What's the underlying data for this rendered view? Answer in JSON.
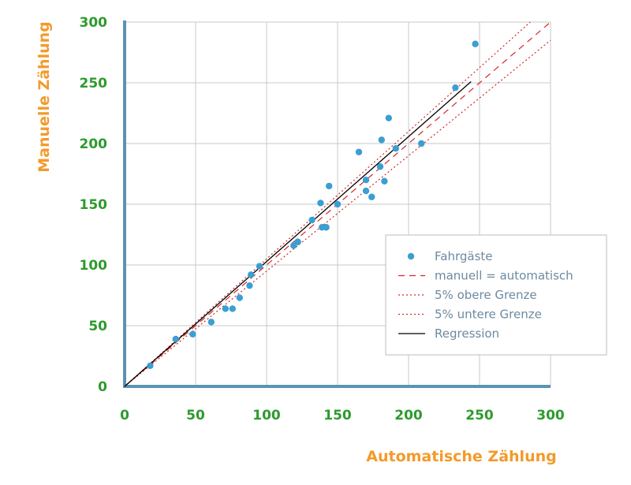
{
  "chart_data": {
    "type": "scatter",
    "xlabel": "Automatische Zählung",
    "ylabel": "Manuelle Zählung",
    "xlim": [
      0,
      300
    ],
    "ylim": [
      0,
      300
    ],
    "x_ticks": [
      0,
      50,
      100,
      150,
      200,
      250,
      300
    ],
    "y_ticks": [
      0,
      50,
      100,
      150,
      200,
      250,
      300
    ],
    "grid": true,
    "legend_position": "right",
    "colors": {
      "tick_labels": "#2e9a2e",
      "axis_titles": "#f39a2a",
      "axis_lines": "#5b93b3",
      "points": "#3a9fd2",
      "identity_line": "#d62728",
      "bound_lines": "#d62728",
      "regression_line": "#000000",
      "legend_text": "#6c8aa0",
      "grid": "#c8c8c8"
    },
    "series": [
      {
        "name": "Fahrgäste",
        "kind": "scatter",
        "points": [
          [
            18,
            17
          ],
          [
            36,
            39
          ],
          [
            48,
            43
          ],
          [
            61,
            53
          ],
          [
            71,
            64
          ],
          [
            76,
            64
          ],
          [
            81,
            73
          ],
          [
            88,
            83
          ],
          [
            89,
            92
          ],
          [
            95,
            99
          ],
          [
            119,
            116
          ],
          [
            122,
            119
          ],
          [
            132,
            137
          ],
          [
            138,
            151
          ],
          [
            139,
            131
          ],
          [
            142,
            131
          ],
          [
            144,
            165
          ],
          [
            150,
            150
          ],
          [
            165,
            193
          ],
          [
            170,
            170
          ],
          [
            170,
            161
          ],
          [
            174,
            156
          ],
          [
            180,
            181
          ],
          [
            181,
            203
          ],
          [
            183,
            169
          ],
          [
            186,
            221
          ],
          [
            191,
            196
          ],
          [
            209,
            200
          ],
          [
            233,
            246
          ],
          [
            247,
            282
          ]
        ]
      },
      {
        "name": "manuell = automatisch",
        "kind": "line",
        "style": "dashed",
        "x": [
          0,
          300
        ],
        "y": [
          0,
          300
        ]
      },
      {
        "name": "5% obere Grenze",
        "kind": "line",
        "style": "dotted",
        "x": [
          0,
          285.7
        ],
        "y": [
          0,
          300
        ]
      },
      {
        "name": "5% untere Grenze",
        "kind": "line",
        "style": "dotted",
        "x": [
          0,
          300
        ],
        "y": [
          0,
          285
        ]
      },
      {
        "name": "Regression",
        "kind": "line",
        "style": "solid",
        "x": [
          0,
          244
        ],
        "y": [
          0,
          251
        ]
      }
    ]
  }
}
